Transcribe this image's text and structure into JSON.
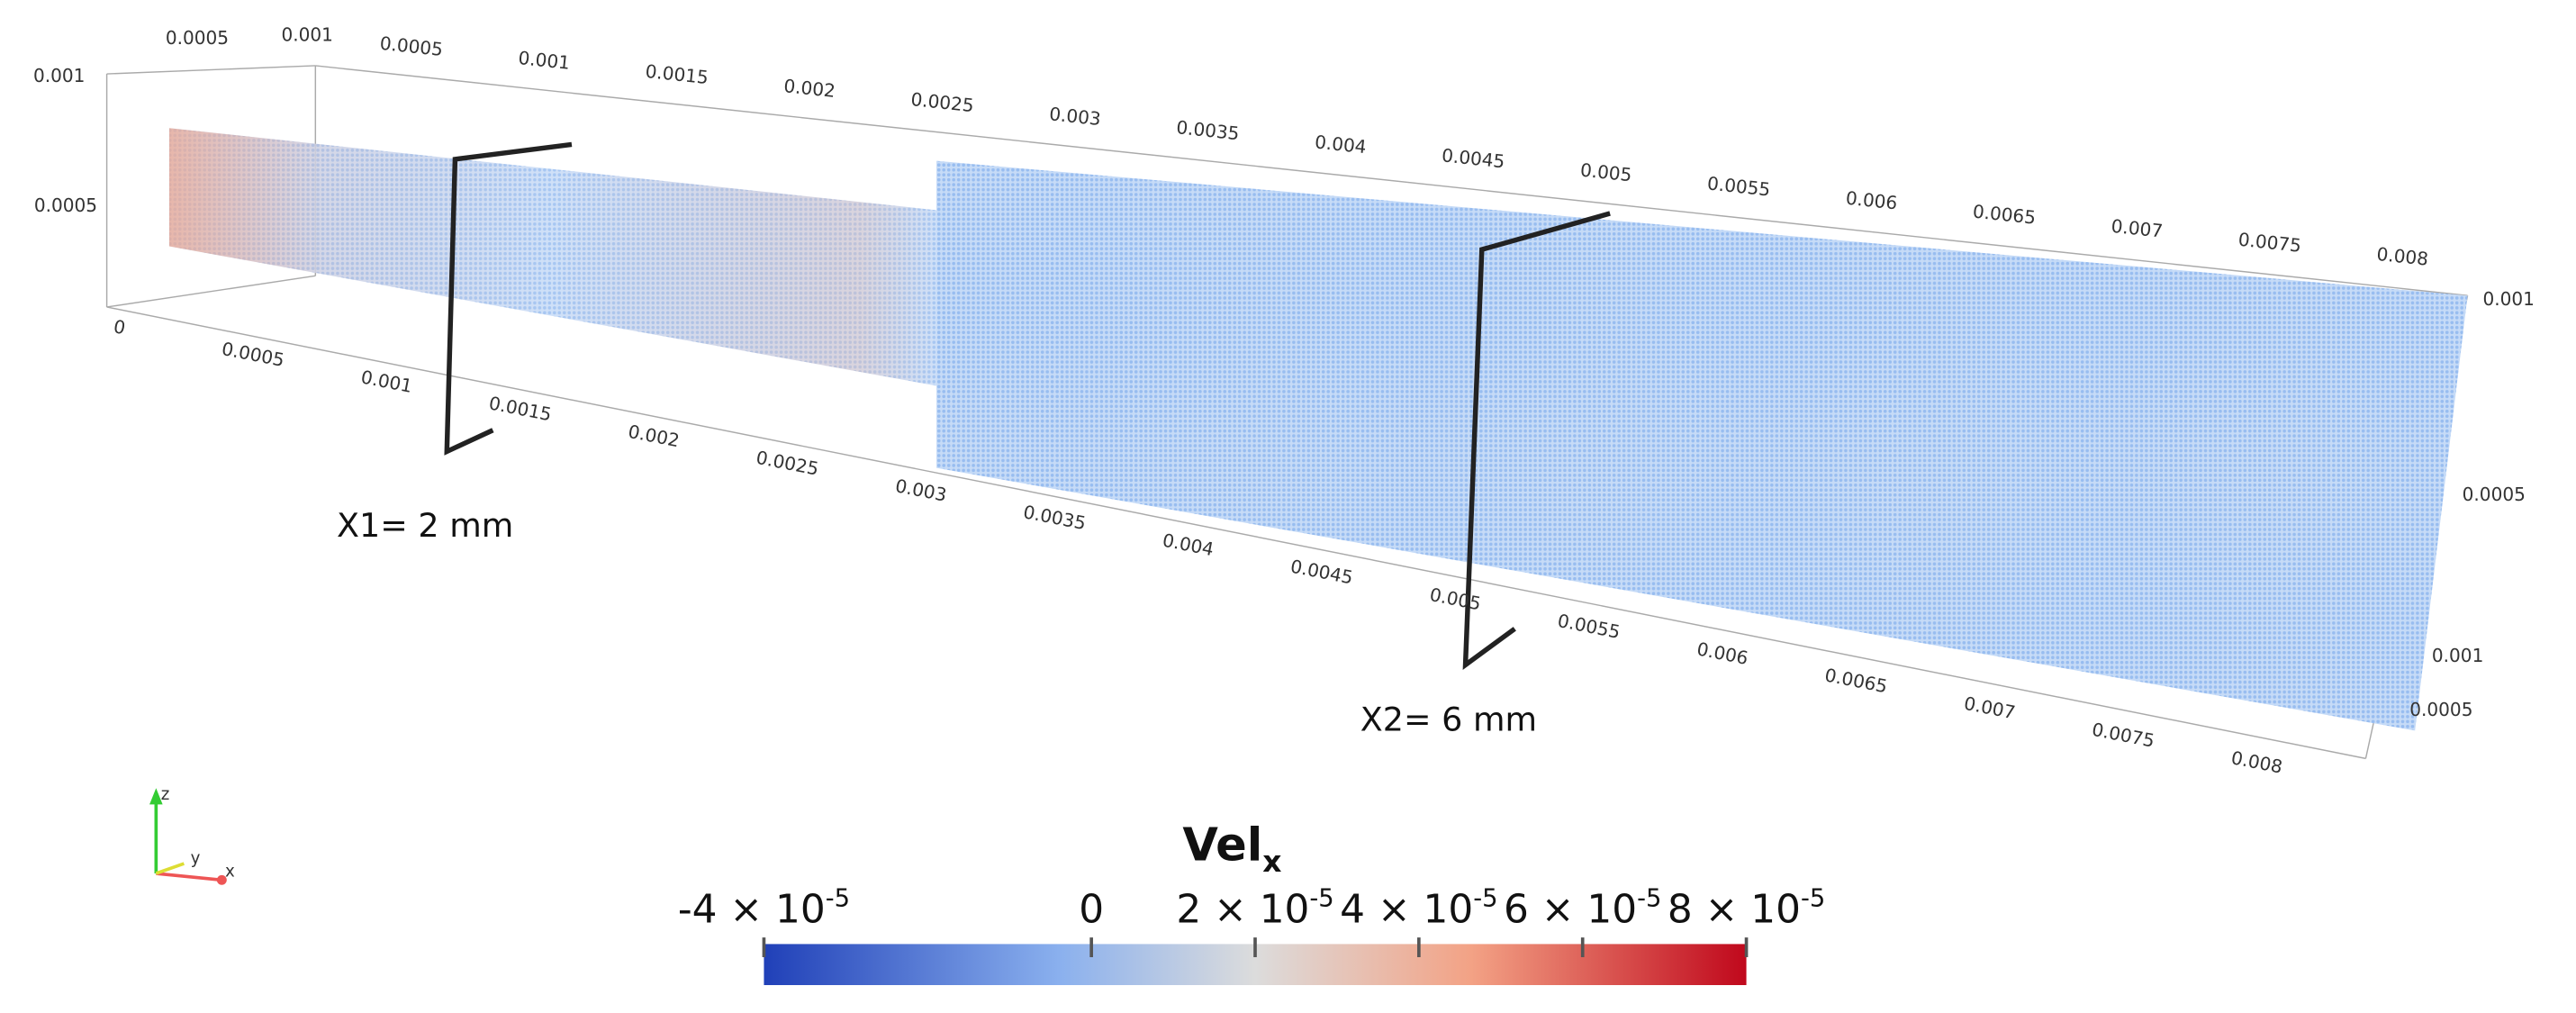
{
  "axes": {
    "top_x_labels": [
      "0.0005",
      "0.001",
      "0.0015",
      "0.002",
      "0.0025",
      "0.003",
      "0.0035",
      "0.004",
      "0.0045",
      "0.005",
      "0.0055",
      "0.006",
      "0.0065",
      "0.007",
      "0.0075",
      "0.008"
    ],
    "bottom_x_labels": [
      "0",
      "0.0005",
      "0.001",
      "0.0015",
      "0.002",
      "0.0025",
      "0.003",
      "0.0035",
      "0.004",
      "0.0045",
      "0.005",
      "0.0055",
      "0.006",
      "0.0065",
      "0.007",
      "0.0075",
      "0.008"
    ],
    "top_y_labels": [
      "0.0005",
      "0.001"
    ],
    "left_z_labels": [
      "0.001",
      "0.0005"
    ],
    "right_labels": [
      "0.001",
      "0.0005",
      "0.001",
      "0.0005"
    ]
  },
  "annotations": [
    "X1= 2 mm",
    "X2= 6 mm"
  ],
  "colorbar": {
    "title": {
      "text": "Vel",
      "subscript": "x"
    },
    "ticks": [
      {
        "value": -4e-05,
        "mantissa": "-4 × 10",
        "exponent": "-5"
      },
      {
        "value": 0,
        "mantissa": "0"
      },
      {
        "value": 2e-05,
        "mantissa": "2 × 10",
        "exponent": "-5"
      },
      {
        "value": 4e-05,
        "mantissa": "4 × 10",
        "exponent": "-5"
      },
      {
        "value": 6e-05,
        "mantissa": "6 × 10",
        "exponent": "-5"
      },
      {
        "value": 8e-05,
        "mantissa": "8 × 10",
        "exponent": "-5"
      }
    ]
  }
}
